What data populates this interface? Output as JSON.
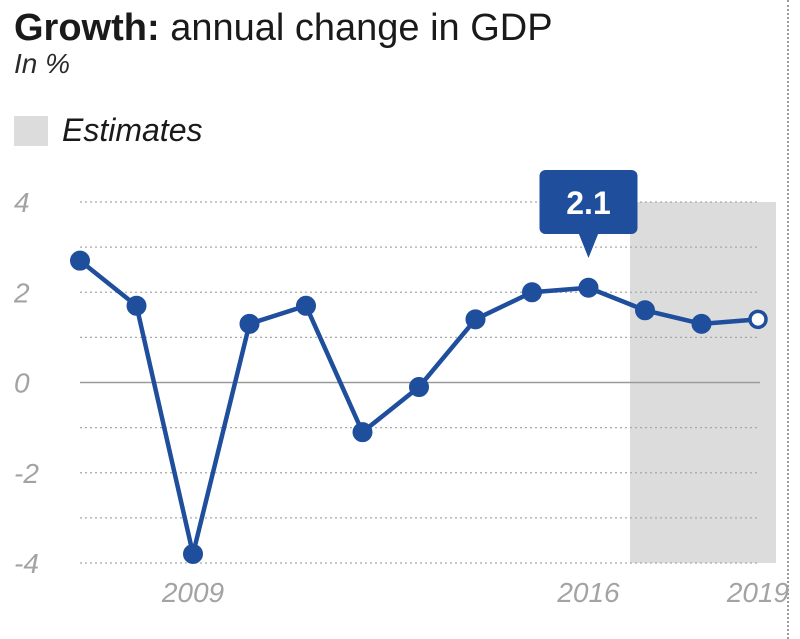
{
  "header": {
    "title_bold": "Growth:",
    "title_rest": " annual change in GDP",
    "subtitle": "In %"
  },
  "legend": {
    "estimates_label": "Estimates"
  },
  "colors": {
    "line": "#1f4e9c",
    "estimate_band": "#dcdcdc",
    "callout": "#1f4e9c",
    "tick_text": "#a3a3a3"
  },
  "chart_data": {
    "type": "line",
    "title": "Growth: annual change in GDP",
    "ylabel": "In %",
    "xlabel": "",
    "ylim": [
      -4,
      4
    ],
    "yticks": [
      4,
      2,
      0,
      -2,
      -4
    ],
    "x": [
      2007,
      2008,
      2009,
      2010,
      2011,
      2012,
      2013,
      2014,
      2015,
      2016,
      2017,
      2018,
      2019
    ],
    "values": [
      2.7,
      1.7,
      -3.8,
      1.3,
      1.7,
      -1.1,
      -0.1,
      1.4,
      2.0,
      2.1,
      1.6,
      1.3,
      1.4
    ],
    "xtick_labels": [
      {
        "year": 2009,
        "label": "2009"
      },
      {
        "year": 2016,
        "label": "2016"
      },
      {
        "year": 2019,
        "label": "2019"
      }
    ],
    "estimate_range": [
      2017,
      2019
    ],
    "estimate_label": "Estimates",
    "highlight": {
      "year": 2016,
      "value": 2.1,
      "label": "2.1"
    },
    "open_marker_year": 2019
  }
}
